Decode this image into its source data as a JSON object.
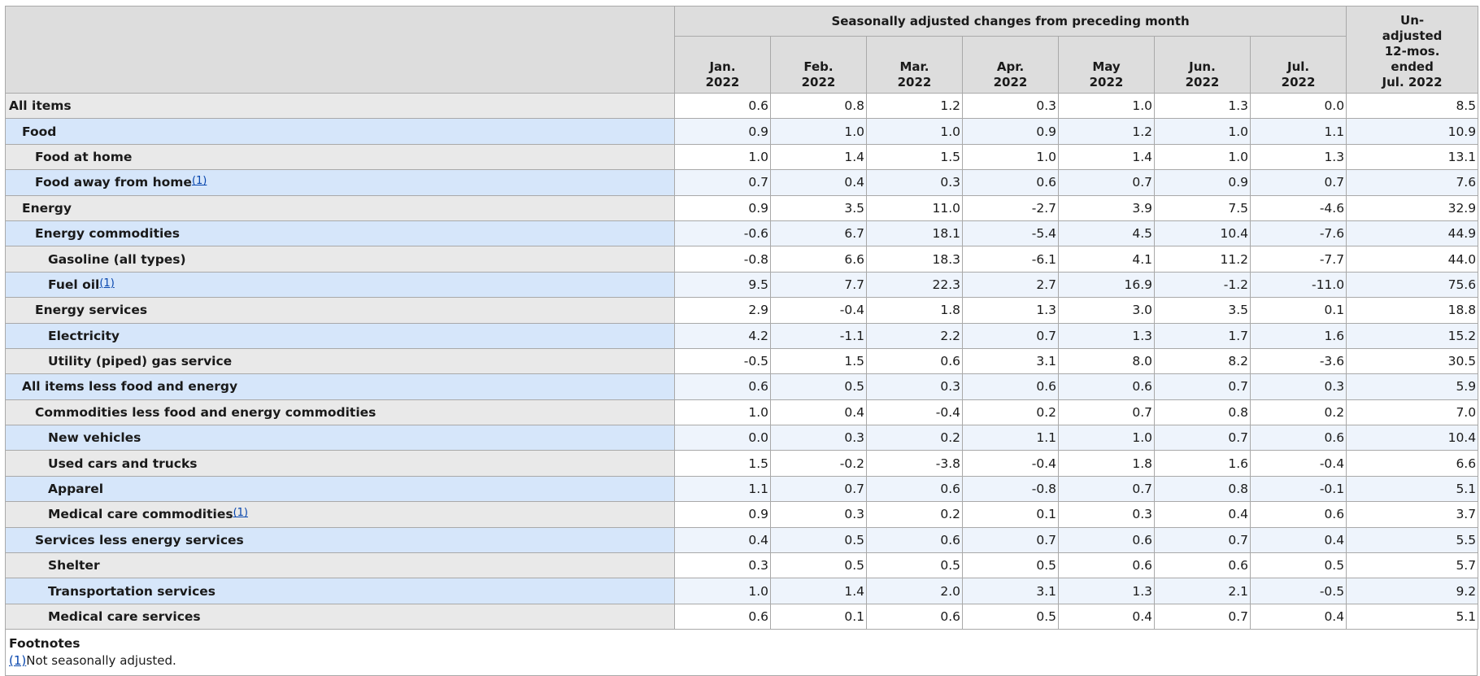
{
  "header": {
    "group_label": "Seasonally adjusted changes from preceding month",
    "months": [
      {
        "line1": "Jan.",
        "line2": "2022"
      },
      {
        "line1": "Feb.",
        "line2": "2022"
      },
      {
        "line1": "Mar.",
        "line2": "2022"
      },
      {
        "line1": "Apr.",
        "line2": "2022"
      },
      {
        "line1": "May",
        "line2": "2022"
      },
      {
        "line1": "Jun.",
        "line2": "2022"
      },
      {
        "line1": "Jul.",
        "line2": "2022"
      }
    ],
    "unadjusted": {
      "line1": "Un-",
      "line2": "adjusted",
      "line3": "12-mos.",
      "line4": "ended",
      "line5": "Jul. 2022"
    }
  },
  "rows": [
    {
      "label": "All items",
      "level": 0,
      "footnote": "",
      "values": [
        "0.6",
        "0.8",
        "1.2",
        "0.3",
        "1.0",
        "1.3",
        "0.0",
        "8.5"
      ]
    },
    {
      "label": "Food",
      "level": 1,
      "footnote": "",
      "values": [
        "0.9",
        "1.0",
        "1.0",
        "0.9",
        "1.2",
        "1.0",
        "1.1",
        "10.9"
      ]
    },
    {
      "label": "Food at home",
      "level": 2,
      "footnote": "",
      "values": [
        "1.0",
        "1.4",
        "1.5",
        "1.0",
        "1.4",
        "1.0",
        "1.3",
        "13.1"
      ]
    },
    {
      "label": "Food away from home",
      "level": 2,
      "footnote": "(1)",
      "values": [
        "0.7",
        "0.4",
        "0.3",
        "0.6",
        "0.7",
        "0.9",
        "0.7",
        "7.6"
      ]
    },
    {
      "label": "Energy",
      "level": 1,
      "footnote": "",
      "values": [
        "0.9",
        "3.5",
        "11.0",
        "-2.7",
        "3.9",
        "7.5",
        "-4.6",
        "32.9"
      ]
    },
    {
      "label": "Energy commodities",
      "level": 2,
      "footnote": "",
      "values": [
        "-0.6",
        "6.7",
        "18.1",
        "-5.4",
        "4.5",
        "10.4",
        "-7.6",
        "44.9"
      ]
    },
    {
      "label": "Gasoline (all types)",
      "level": 3,
      "footnote": "",
      "values": [
        "-0.8",
        "6.6",
        "18.3",
        "-6.1",
        "4.1",
        "11.2",
        "-7.7",
        "44.0"
      ]
    },
    {
      "label": "Fuel oil",
      "level": 3,
      "footnote": "(1)",
      "values": [
        "9.5",
        "7.7",
        "22.3",
        "2.7",
        "16.9",
        "-1.2",
        "-11.0",
        "75.6"
      ]
    },
    {
      "label": "Energy services",
      "level": 2,
      "footnote": "",
      "values": [
        "2.9",
        "-0.4",
        "1.8",
        "1.3",
        "3.0",
        "3.5",
        "0.1",
        "18.8"
      ]
    },
    {
      "label": "Electricity",
      "level": 3,
      "footnote": "",
      "values": [
        "4.2",
        "-1.1",
        "2.2",
        "0.7",
        "1.3",
        "1.7",
        "1.6",
        "15.2"
      ]
    },
    {
      "label": "Utility (piped) gas service",
      "level": 3,
      "footnote": "",
      "values": [
        "-0.5",
        "1.5",
        "0.6",
        "3.1",
        "8.0",
        "8.2",
        "-3.6",
        "30.5"
      ]
    },
    {
      "label": "All items less food and energy",
      "level": 1,
      "footnote": "",
      "values": [
        "0.6",
        "0.5",
        "0.3",
        "0.6",
        "0.6",
        "0.7",
        "0.3",
        "5.9"
      ]
    },
    {
      "label": "Commodities less food and energy commodities",
      "level": 2,
      "footnote": "",
      "values": [
        "1.0",
        "0.4",
        "-0.4",
        "0.2",
        "0.7",
        "0.8",
        "0.2",
        "7.0"
      ]
    },
    {
      "label": "New vehicles",
      "level": 3,
      "footnote": "",
      "values": [
        "0.0",
        "0.3",
        "0.2",
        "1.1",
        "1.0",
        "0.7",
        "0.6",
        "10.4"
      ]
    },
    {
      "label": "Used cars and trucks",
      "level": 3,
      "footnote": "",
      "values": [
        "1.5",
        "-0.2",
        "-3.8",
        "-0.4",
        "1.8",
        "1.6",
        "-0.4",
        "6.6"
      ]
    },
    {
      "label": "Apparel",
      "level": 3,
      "footnote": "",
      "values": [
        "1.1",
        "0.7",
        "0.6",
        "-0.8",
        "0.7",
        "0.8",
        "-0.1",
        "5.1"
      ]
    },
    {
      "label": "Medical care commodities",
      "level": 3,
      "footnote": "(1)",
      "values": [
        "0.9",
        "0.3",
        "0.2",
        "0.1",
        "0.3",
        "0.4",
        "0.6",
        "3.7"
      ]
    },
    {
      "label": "Services less energy services",
      "level": 2,
      "footnote": "",
      "values": [
        "0.4",
        "0.5",
        "0.6",
        "0.7",
        "0.6",
        "0.7",
        "0.4",
        "5.5"
      ]
    },
    {
      "label": "Shelter",
      "level": 3,
      "footnote": "",
      "values": [
        "0.3",
        "0.5",
        "0.5",
        "0.5",
        "0.6",
        "0.6",
        "0.5",
        "5.7"
      ]
    },
    {
      "label": "Transportation services",
      "level": 3,
      "footnote": "",
      "values": [
        "1.0",
        "1.4",
        "2.0",
        "3.1",
        "1.3",
        "2.1",
        "-0.5",
        "9.2"
      ]
    },
    {
      "label": "Medical care services",
      "level": 3,
      "footnote": "",
      "values": [
        "0.6",
        "0.1",
        "0.6",
        "0.5",
        "0.4",
        "0.7",
        "0.4",
        "5.1"
      ]
    }
  ],
  "footnotes": {
    "title": "Footnotes",
    "items": [
      {
        "marker": "(1)",
        "text": "Not seasonally adjusted."
      }
    ]
  },
  "colors": {
    "header_bg": "#dddddd",
    "stub_odd": "#e9e9e9",
    "stub_even": "#d6e6fa",
    "cell_even": "#eef4fc",
    "link": "#0645ad"
  }
}
